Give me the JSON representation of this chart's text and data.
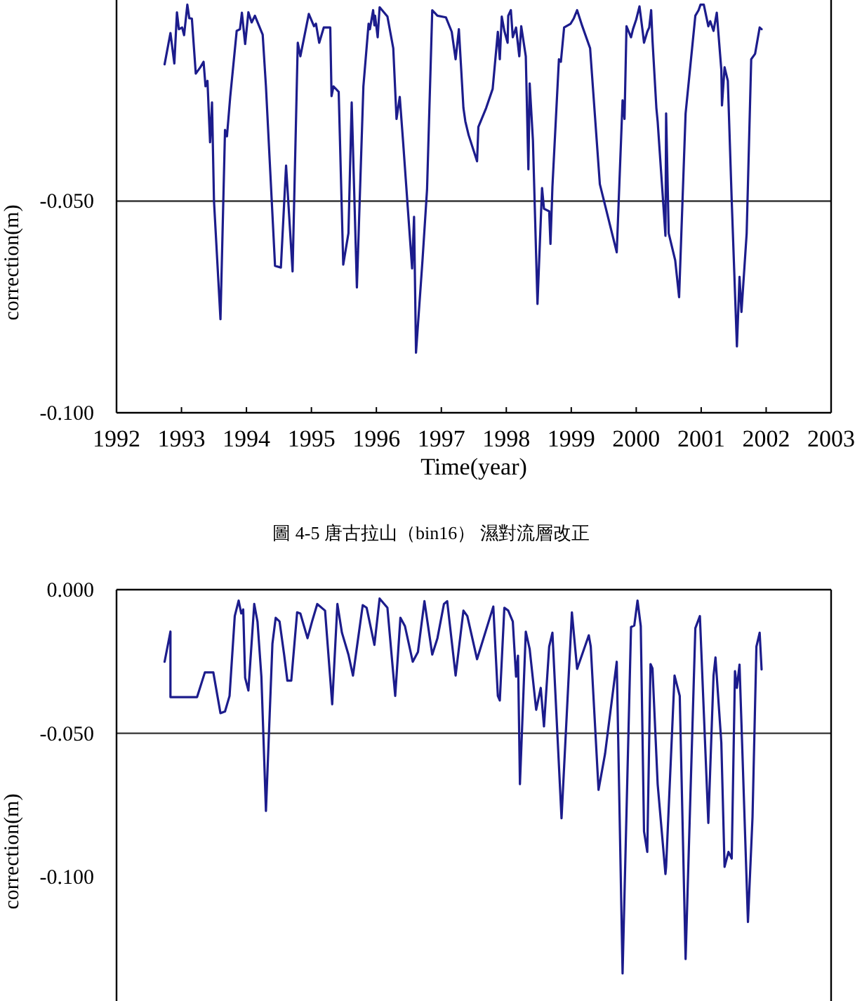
{
  "chart_data": [
    {
      "type": "line",
      "color": "#1c1c8c",
      "xlabel": "Time(year)",
      "ylabel": "correction(m)",
      "annotations": [
        "圖 4-5 唐古拉山（bin16） 濕對流層改正"
      ],
      "xlim": [
        1992,
        2003
      ],
      "xticks": [
        1992,
        1993,
        1994,
        1995,
        1996,
        1997,
        1998,
        1999,
        2000,
        2001,
        2002,
        2003
      ],
      "ylim": [
        -0.1,
        -0.0025
      ],
      "yticks": [
        {
          "value": -0.1,
          "label": "-0.100"
        },
        {
          "value": -0.05,
          "label": "-0.050"
        }
      ],
      "ref_lines": [
        {
          "axis": "y",
          "value": -0.05,
          "color": "#333333"
        }
      ],
      "x": [
        1992.74,
        1992.83,
        1992.89,
        1992.93,
        1992.96,
        1993.01,
        1993.04,
        1993.09,
        1993.12,
        1993.16,
        1993.22,
        1993.29,
        1993.34,
        1993.37,
        1993.4,
        1993.44,
        1993.47,
        1993.5,
        1993.6,
        1993.67,
        1993.7,
        1993.75,
        1993.85,
        1993.9,
        1993.93,
        1993.98,
        1994.03,
        1994.08,
        1994.13,
        1994.25,
        1994.3,
        1994.44,
        1994.53,
        1994.61,
        1994.71,
        1994.79,
        1994.83,
        1994.96,
        1995.04,
        1995.07,
        1995.12,
        1995.19,
        1995.29,
        1995.31,
        1995.34,
        1995.42,
        1995.49,
        1995.57,
        1995.62,
        1995.7,
        1995.8,
        1995.88,
        1995.9,
        1995.95,
        1995.97,
        1995.98,
        1996.02,
        1996.05,
        1996.17,
        1996.26,
        1996.31,
        1996.36,
        1996.41,
        1996.55,
        1996.58,
        1996.61,
        1996.71,
        1996.78,
        1996.86,
        1996.94,
        1997.07,
        1997.16,
        1997.22,
        1997.27,
        1997.34,
        1997.37,
        1997.42,
        1997.55,
        1997.57,
        1997.69,
        1997.79,
        1997.87,
        1997.9,
        1997.93,
        1997.97,
        1998.02,
        1998.03,
        1998.07,
        1998.1,
        1998.15,
        1998.2,
        1998.23,
        1998.3,
        1998.34,
        1998.36,
        1998.41,
        1998.48,
        1998.55,
        1998.58,
        1998.66,
        1998.68,
        1998.71,
        1998.81,
        1998.84,
        1998.89,
        1998.99,
        1999.04,
        1999.09,
        1999.17,
        1999.29,
        1999.44,
        1999.7,
        1999.79,
        1999.82,
        1999.85,
        1999.92,
        1999.95,
        2000.0,
        2000.05,
        2000.1,
        2000.12,
        2000.17,
        2000.2,
        2000.23,
        2000.25,
        2000.31,
        2000.33,
        2000.45,
        2000.46,
        2000.5,
        2000.6,
        2000.66,
        2000.76,
        2000.86,
        2000.91,
        2000.96,
        2000.99,
        2001.04,
        2001.11,
        2001.14,
        2001.19,
        2001.24,
        2001.31,
        2001.32,
        2001.36,
        2001.41,
        2001.47,
        2001.55,
        2001.59,
        2001.62,
        2001.7,
        2001.77,
        2001.83,
        2001.9,
        2001.93
      ],
      "values": [
        -0.0177,
        -0.0103,
        -0.0175,
        -0.0054,
        -0.0094,
        -0.009,
        -0.0108,
        -0.0036,
        -0.0068,
        -0.0069,
        -0.0199,
        -0.0184,
        -0.0171,
        -0.0229,
        -0.0216,
        -0.0361,
        -0.0267,
        -0.0499,
        -0.0779,
        -0.0332,
        -0.0347,
        -0.0254,
        -0.0098,
        -0.0094,
        -0.0055,
        -0.0129,
        -0.0054,
        -0.0078,
        -0.0062,
        -0.0107,
        -0.0229,
        -0.0653,
        -0.0657,
        -0.0416,
        -0.0666,
        -0.0126,
        -0.0158,
        -0.0058,
        -0.0087,
        -0.0081,
        -0.0126,
        -0.009,
        -0.009,
        -0.0252,
        -0.0229,
        -0.0242,
        -0.065,
        -0.0576,
        -0.0267,
        -0.0704,
        -0.0229,
        -0.0081,
        -0.0094,
        -0.0049,
        -0.0085,
        -0.0062,
        -0.0113,
        -0.0042,
        -0.0064,
        -0.0139,
        -0.0306,
        -0.0254,
        -0.0357,
        -0.0659,
        -0.0537,
        -0.0858,
        -0.064,
        -0.0473,
        -0.0049,
        -0.0062,
        -0.0066,
        -0.01,
        -0.0165,
        -0.0094,
        -0.028,
        -0.0312,
        -0.0344,
        -0.0406,
        -0.0325,
        -0.028,
        -0.0235,
        -0.01,
        -0.0165,
        -0.0064,
        -0.0098,
        -0.0126,
        -0.0062,
        -0.0049,
        -0.0113,
        -0.009,
        -0.0158,
        -0.0087,
        -0.0158,
        -0.0425,
        -0.0222,
        -0.0357,
        -0.0743,
        -0.0469,
        -0.0518,
        -0.0524,
        -0.0601,
        -0.0466,
        -0.0165,
        -0.0171,
        -0.009,
        -0.0081,
        -0.0068,
        -0.0049,
        -0.0087,
        -0.0139,
        -0.046,
        -0.0621,
        -0.0262,
        -0.0306,
        -0.0087,
        -0.0113,
        -0.0094,
        -0.0071,
        -0.004,
        -0.01,
        -0.0126,
        -0.01,
        -0.009,
        -0.0049,
        -0.0119,
        -0.028,
        -0.0312,
        -0.0582,
        -0.0293,
        -0.0576,
        -0.064,
        -0.0727,
        -0.0293,
        -0.0139,
        -0.0062,
        -0.0049,
        -0.0036,
        -0.0036,
        -0.0087,
        -0.0075,
        -0.0098,
        -0.0055,
        -0.019,
        -0.0274,
        -0.0184,
        -0.0216,
        -0.0499,
        -0.0843,
        -0.0679,
        -0.0762,
        -0.0576,
        -0.0165,
        -0.0152,
        -0.009,
        -0.0094
      ]
    },
    {
      "type": "line",
      "color": "#1c1c8c",
      "ylabel": "correction(m)",
      "tick_labels": "y",
      "xlim": [
        1992,
        2003
      ],
      "ylim": [
        -0.1432,
        0
      ],
      "yticks": [
        {
          "value": -0.1,
          "label": "-0.100"
        },
        {
          "value": -0.05,
          "label": "-0.050"
        },
        {
          "value": 0,
          "label": "0.000"
        }
      ],
      "ref_lines": [
        {
          "axis": "y",
          "value": -0.05,
          "color": "#333333"
        }
      ],
      "x": [
        1992.74,
        1992.83,
        1992.83,
        1993.24,
        1993.36,
        1993.49,
        1993.6,
        1993.67,
        1993.74,
        1993.82,
        1993.88,
        1993.92,
        1993.95,
        1993.98,
        1994.03,
        1994.12,
        1994.17,
        1994.23,
        1994.3,
        1994.4,
        1994.45,
        1994.51,
        1994.58,
        1994.63,
        1994.69,
        1994.78,
        1994.83,
        1994.94,
        1995.01,
        1995.09,
        1995.21,
        1995.32,
        1995.4,
        1995.47,
        1995.57,
        1995.64,
        1995.79,
        1995.85,
        1995.97,
        1996.05,
        1996.17,
        1996.29,
        1996.37,
        1996.44,
        1996.56,
        1996.64,
        1996.74,
        1996.86,
        1996.94,
        1997.04,
        1997.09,
        1997.22,
        1997.34,
        1997.4,
        1997.55,
        1997.8,
        1997.87,
        1997.9,
        1997.97,
        1998.03,
        1998.1,
        1998.15,
        1998.18,
        1998.21,
        1998.3,
        1998.36,
        1998.46,
        1998.53,
        1998.58,
        1998.66,
        1998.71,
        1998.85,
        1999.01,
        1999.09,
        1999.27,
        1999.3,
        1999.42,
        1999.52,
        1999.7,
        1999.79,
        1999.92,
        1999.97,
        2000.02,
        2000.07,
        2000.12,
        2000.17,
        2000.22,
        2000.25,
        2000.33,
        2000.45,
        2000.46,
        2000.59,
        2000.67,
        2000.76,
        2000.91,
        2000.98,
        2001.11,
        2001.19,
        2001.22,
        2001.31,
        2001.36,
        2001.42,
        2001.47,
        2001.52,
        2001.55,
        2001.59,
        2001.72,
        2001.79,
        2001.85,
        2001.9,
        2001.93
      ],
      "values": [
        -0.0251,
        -0.0146,
        -0.0374,
        -0.0374,
        -0.0288,
        -0.0288,
        -0.043,
        -0.0424,
        -0.037,
        -0.0092,
        -0.0038,
        -0.0083,
        -0.0069,
        -0.0307,
        -0.0351,
        -0.005,
        -0.0111,
        -0.0303,
        -0.077,
        -0.0188,
        -0.0098,
        -0.0111,
        -0.0226,
        -0.0317,
        -0.0317,
        -0.0079,
        -0.0083,
        -0.0169,
        -0.0111,
        -0.005,
        -0.0073,
        -0.0399,
        -0.005,
        -0.015,
        -0.0226,
        -0.0299,
        -0.0054,
        -0.0063,
        -0.0192,
        -0.0031,
        -0.0063,
        -0.037,
        -0.0098,
        -0.0127,
        -0.0251,
        -0.0217,
        -0.004,
        -0.0226,
        -0.0169,
        -0.005,
        -0.004,
        -0.0299,
        -0.0073,
        -0.0092,
        -0.0242,
        -0.0059,
        -0.037,
        -0.0386,
        -0.0063,
        -0.0073,
        -0.0111,
        -0.0303,
        -0.023,
        -0.0677,
        -0.0146,
        -0.0207,
        -0.0418,
        -0.0342,
        -0.0476,
        -0.0198,
        -0.015,
        -0.0796,
        -0.0079,
        -0.0276,
        -0.0159,
        -0.0198,
        -0.0697,
        -0.0572,
        -0.0251,
        -0.1336,
        -0.013,
        -0.0125,
        -0.0038,
        -0.0127,
        -0.0841,
        -0.0913,
        -0.0259,
        -0.0274,
        -0.0677,
        -0.099,
        -0.0965,
        -0.0299,
        -0.037,
        -0.1286,
        -0.0134,
        -0.0092,
        -0.0812,
        -0.0299,
        -0.0236,
        -0.0533,
        -0.0965,
        -0.0913,
        -0.0936,
        -0.0284,
        -0.0342,
        -0.0261,
        -0.1157,
        -0.0793,
        -0.0198,
        -0.015,
        -0.0278
      ]
    }
  ]
}
